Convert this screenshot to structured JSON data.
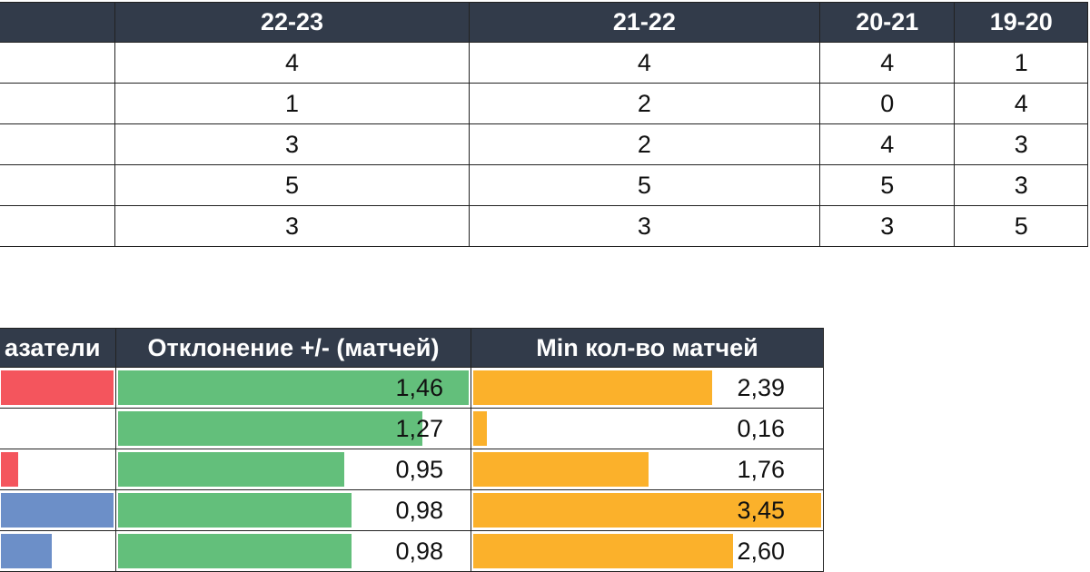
{
  "top_table": {
    "headers": [
      "",
      "22-23",
      "21-22",
      "20-21",
      "19-20"
    ],
    "rows": [
      [
        "4",
        "4",
        "4",
        "1"
      ],
      [
        "1",
        "2",
        "0",
        "4"
      ],
      [
        "3",
        "2",
        "4",
        "3"
      ],
      [
        "5",
        "5",
        "5",
        "3"
      ],
      [
        "3",
        "3",
        "3",
        "5"
      ]
    ]
  },
  "bottom_table": {
    "headers": [
      "азатели",
      "Отклонение +/- (матчей)",
      "Min кол-во матчей"
    ],
    "rows": [
      {
        "indicator_color": "#f4555d",
        "indicator_fill": 1.0,
        "deviation": "1,46",
        "deviation_fill": 1.0,
        "min_matches": "2,39",
        "min_fill": 0.69
      },
      {
        "indicator_color": "",
        "indicator_fill": 0.0,
        "deviation": "1,27",
        "deviation_fill": 0.87,
        "min_matches": "0,16",
        "min_fill": 0.05
      },
      {
        "indicator_color": "#f4555d",
        "indicator_fill": 0.18,
        "deviation": "0,95",
        "deviation_fill": 0.65,
        "min_matches": "1,76",
        "min_fill": 0.51
      },
      {
        "indicator_color": "#6c8fc8",
        "indicator_fill": 1.0,
        "deviation": "0,98",
        "deviation_fill": 0.67,
        "min_matches": "3,45",
        "min_fill": 1.0
      },
      {
        "indicator_color": "#6c8fc8",
        "indicator_fill": 0.47,
        "deviation": "0,98",
        "deviation_fill": 0.67,
        "min_matches": "2,60",
        "min_fill": 0.75
      }
    ]
  },
  "colors": {
    "header_bg": "#323b4a",
    "deviation_bar": "#63bf7b",
    "min_bar": "#fbb12b"
  }
}
